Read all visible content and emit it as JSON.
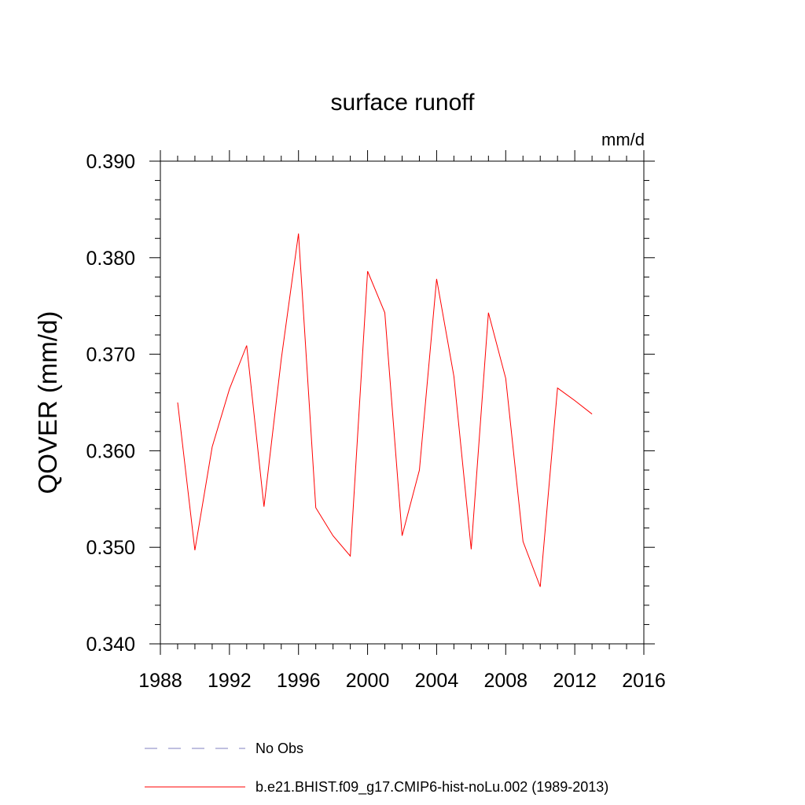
{
  "chart_data": {
    "type": "line",
    "title": "surface runoff",
    "units_label": "mm/d",
    "ylabel": "QOVER  (mm/d)",
    "xlabel": "",
    "xlim": [
      1988,
      2016
    ],
    "ylim": [
      0.34,
      0.39
    ],
    "x_ticks": [
      1988,
      1992,
      1996,
      2000,
      2004,
      2008,
      2012,
      2016
    ],
    "y_ticks": [
      0.34,
      0.35,
      0.36,
      0.37,
      0.38,
      0.39
    ],
    "x_tick_labels": [
      "1988",
      "1992",
      "1996",
      "2000",
      "2004",
      "2008",
      "2012",
      "2016"
    ],
    "y_tick_labels": [
      "0.340",
      "0.350",
      "0.360",
      "0.370",
      "0.380",
      "0.390"
    ],
    "grid": false,
    "legend_position": "bottom",
    "series": [
      {
        "name": "No Obs",
        "style": "dashed",
        "color": "#8080c0",
        "x": [],
        "y": []
      },
      {
        "name": "b.e21.BHIST.f09_g17.CMIP6-hist-noLu.002 (1989-2013)",
        "style": "solid",
        "color": "#ff0000",
        "x": [
          1989,
          1990,
          1991,
          1992,
          1993,
          1994,
          1995,
          1996,
          1997,
          1998,
          1999,
          2000,
          2001,
          2002,
          2003,
          2004,
          2005,
          2006,
          2007,
          2008,
          2009,
          2010,
          2011,
          2012,
          2013
        ],
        "y": [
          0.365,
          0.3497,
          0.3604,
          0.3664,
          0.3709,
          0.3542,
          0.3695,
          0.3825,
          0.3541,
          0.3512,
          0.3491,
          0.3786,
          0.3743,
          0.3512,
          0.358,
          0.3778,
          0.3677,
          0.3498,
          0.3743,
          0.3675,
          0.3506,
          0.3459,
          0.3665,
          0.3652,
          0.3638
        ]
      }
    ]
  }
}
